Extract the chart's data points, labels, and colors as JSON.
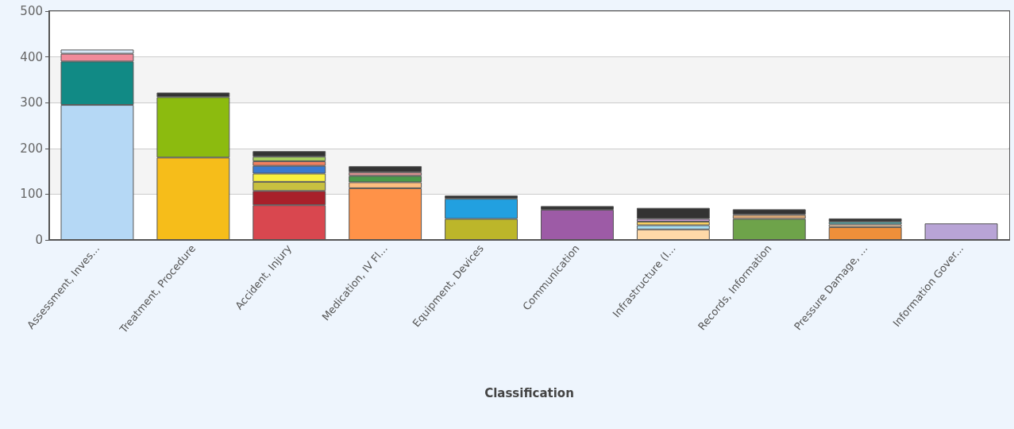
{
  "chart_data": {
    "type": "bar",
    "stacked": true,
    "xlabel": "Classification",
    "categories": [
      "Assessment, Inves...",
      "Treatment, Procedure",
      "Accident, Injury",
      "Medication, IV Fl...",
      "Equipment, Devices",
      "Communication",
      "Infrastructure (I...",
      "Records, Information",
      "Pressure Damage, ...",
      "Information Gover..."
    ],
    "series": [
      {
        "values": [
          295,
          180,
          76,
          113,
          46,
          66,
          23,
          46,
          28,
          36
        ],
        "colors": [
          "#b5d8f5",
          "#f6bd1a",
          "#d9474f",
          "#ff9248",
          "#bcb62a",
          "#9d5ba6",
          "#ffd9a8",
          "#6ea34a",
          "#ef8f3a",
          "#b8a4d6"
        ]
      },
      {
        "values": [
          95,
          132,
          31,
          13,
          44,
          8,
          9,
          9,
          6,
          null
        ],
        "colors": [
          "#118a85",
          "#8cbb0f",
          "#a8202a",
          "#ffbf80",
          "#22a0e0",
          "#333333",
          "#a8e0f5",
          "#d9a878",
          "#f0c8a0",
          null
        ]
      },
      {
        "values": [
          17,
          10,
          20,
          14,
          7,
          null,
          8,
          12,
          6,
          null
        ],
        "colors": [
          "#f08a9a",
          "#333333",
          "#c8c040",
          "#4a9a4a",
          "#333333",
          null,
          "#f8d060",
          "#333333",
          "#5ab0b0",
          null
        ]
      },
      {
        "values": [
          9,
          null,
          18,
          8,
          null,
          null,
          6,
          null,
          7,
          null
        ],
        "colors": [
          "#d8e8f8",
          null,
          "#f8f040",
          "#d89090",
          null,
          null,
          "#d0a0d8",
          null,
          "#333333",
          null
        ]
      },
      {
        "values": [
          null,
          null,
          17,
          13,
          null,
          null,
          24,
          null,
          null,
          null
        ],
        "colors": [
          null,
          null,
          "#3a7ad0",
          "#333333",
          null,
          null,
          "#333333",
          null,
          null,
          null
        ]
      },
      {
        "values": [
          null,
          null,
          10,
          null,
          null,
          null,
          null,
          null,
          null,
          null
        ],
        "colors": [
          null,
          null,
          "#f08060",
          null,
          null,
          null,
          null,
          null,
          null,
          null
        ]
      },
      {
        "values": [
          null,
          null,
          10,
          null,
          null,
          null,
          null,
          null,
          null,
          null
        ],
        "colors": [
          null,
          null,
          "#a8d060",
          null,
          null,
          null,
          null,
          null,
          null,
          null
        ]
      },
      {
        "values": [
          null,
          null,
          12,
          null,
          null,
          null,
          null,
          null,
          null,
          null
        ],
        "colors": [
          null,
          null,
          "#333333",
          null,
          null,
          null,
          null,
          null,
          null,
          null
        ]
      }
    ],
    "ylim": [
      0,
      500
    ],
    "yticks": [
      0,
      100,
      200,
      300,
      400,
      500
    ],
    "grid": "y"
  }
}
